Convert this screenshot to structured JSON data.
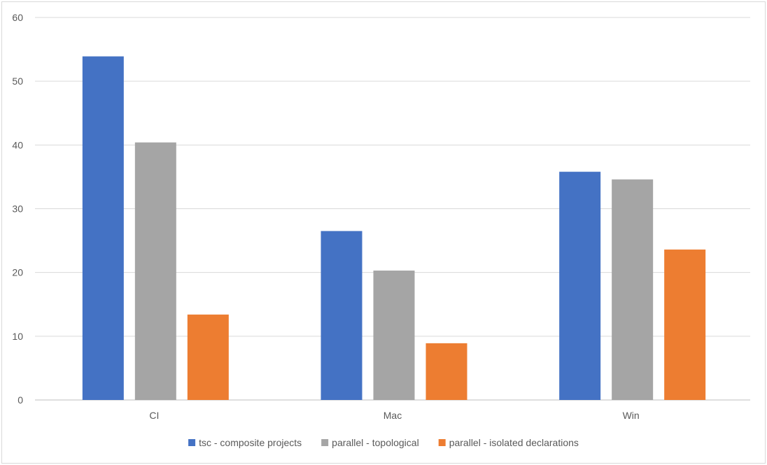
{
  "chart_data": {
    "type": "bar",
    "title": "",
    "xlabel": "",
    "ylabel": "",
    "categories": [
      "CI",
      "Mac",
      "Win"
    ],
    "series": [
      {
        "name": "tsc - composite projects",
        "color": "#4472c4",
        "values": [
          53.9,
          26.5,
          35.8
        ]
      },
      {
        "name": "parallel - topological",
        "color": "#a5a5a5",
        "values": [
          40.4,
          20.3,
          34.6
        ]
      },
      {
        "name": "parallel - isolated declarations",
        "color": "#ed7d31",
        "values": [
          13.4,
          8.9,
          23.6
        ]
      }
    ],
    "ylim": [
      0,
      60
    ],
    "yticks": [
      0,
      10,
      20,
      30,
      40,
      50,
      60
    ],
    "grid": true,
    "legend_position": "bottom"
  }
}
